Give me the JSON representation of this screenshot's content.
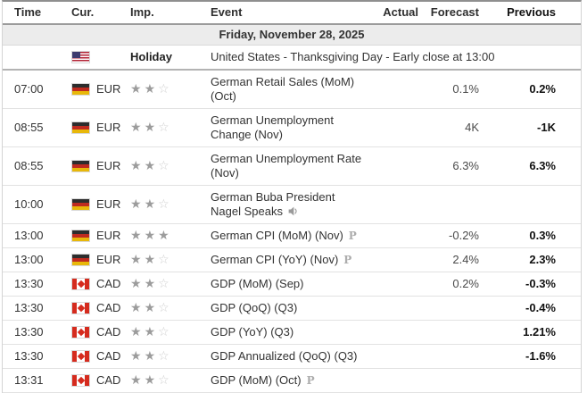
{
  "table": {
    "columns": {
      "time": "Time",
      "currency": "Cur.",
      "importance": "Imp.",
      "event": "Event",
      "actual": "Actual",
      "forecast": "Forecast",
      "previous": "Previous"
    },
    "date_header": "Friday, November 28, 2025",
    "holiday": {
      "flag": "us",
      "label": "Holiday",
      "event": "United States - Thanksgiving Day - Early close at 13:00"
    },
    "rows": [
      {
        "time": "07:00",
        "flag": "de",
        "currency": "EUR",
        "importance": 2,
        "event": "German Retail Sales (MoM) (Oct)",
        "icon": "",
        "actual": "",
        "forecast": "0.1%",
        "previous": "0.2%"
      },
      {
        "time": "08:55",
        "flag": "de",
        "currency": "EUR",
        "importance": 2,
        "event": "German Unemployment Change (Nov)",
        "icon": "",
        "actual": "",
        "forecast": "4K",
        "previous": "-1K"
      },
      {
        "time": "08:55",
        "flag": "de",
        "currency": "EUR",
        "importance": 2,
        "event": "German Unemployment Rate (Nov)",
        "icon": "",
        "actual": "",
        "forecast": "6.3%",
        "previous": "6.3%"
      },
      {
        "time": "10:00",
        "flag": "de",
        "currency": "EUR",
        "importance": 2,
        "event": "German Buba President Nagel Speaks",
        "icon": "speaker-icon",
        "actual": "",
        "forecast": "",
        "previous": ""
      },
      {
        "time": "13:00",
        "flag": "de",
        "currency": "EUR",
        "importance": 3,
        "event": "German CPI (MoM) (Nov)",
        "icon": "preliminary-icon",
        "actual": "",
        "forecast": "-0.2%",
        "previous": "0.3%"
      },
      {
        "time": "13:00",
        "flag": "de",
        "currency": "EUR",
        "importance": 2,
        "event": "German CPI (YoY) (Nov)",
        "icon": "preliminary-icon",
        "actual": "",
        "forecast": "2.4%",
        "previous": "2.3%"
      },
      {
        "time": "13:30",
        "flag": "ca",
        "currency": "CAD",
        "importance": 2,
        "event": "GDP (MoM) (Sep)",
        "icon": "",
        "actual": "",
        "forecast": "0.2%",
        "previous": "-0.3%"
      },
      {
        "time": "13:30",
        "flag": "ca",
        "currency": "CAD",
        "importance": 2,
        "event": "GDP (QoQ) (Q3)",
        "icon": "",
        "actual": "",
        "forecast": "",
        "previous": "-0.4%"
      },
      {
        "time": "13:30",
        "flag": "ca",
        "currency": "CAD",
        "importance": 2,
        "event": "GDP (YoY) (Q3)",
        "icon": "",
        "actual": "",
        "forecast": "",
        "previous": "1.21%"
      },
      {
        "time": "13:30",
        "flag": "ca",
        "currency": "CAD",
        "importance": 2,
        "event": "GDP Annualized (QoQ) (Q3)",
        "icon": "",
        "actual": "",
        "forecast": "",
        "previous": "-1.6%"
      },
      {
        "time": "13:31",
        "flag": "ca",
        "currency": "CAD",
        "importance": 2,
        "event": "GDP (MoM) (Oct)",
        "icon": "preliminary-icon",
        "actual": "",
        "forecast": "",
        "previous": ""
      }
    ],
    "colors": {
      "date_row_bg": "#ececec",
      "star_filled": "#9c9c9c",
      "star_empty": "#cfcfcf",
      "previous_text": "#111111"
    }
  }
}
